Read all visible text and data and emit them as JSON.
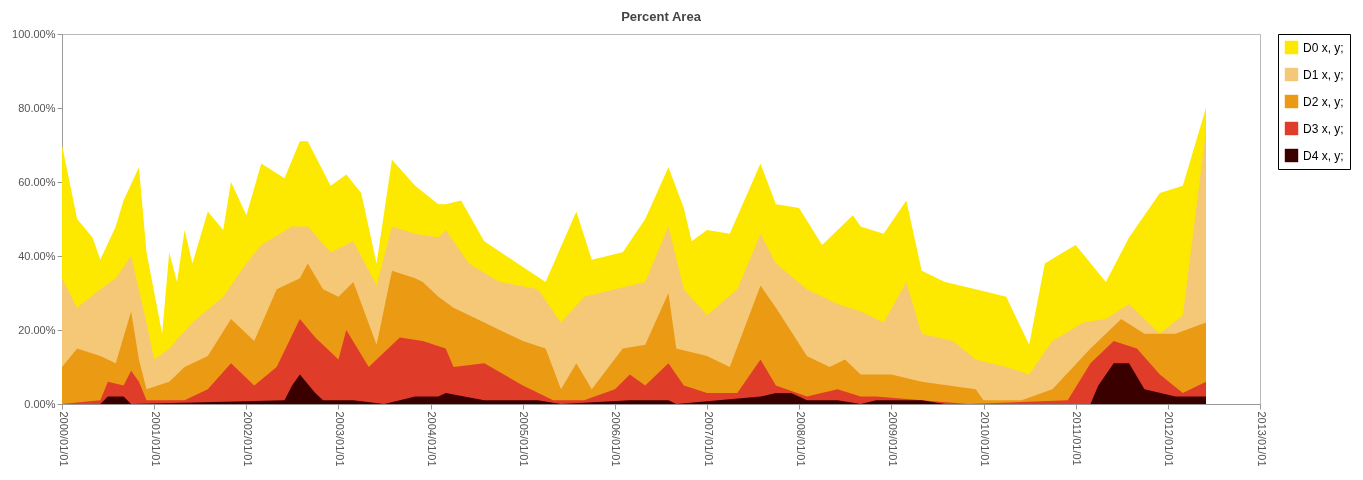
{
  "chart_data": {
    "type": "area",
    "title": "Percent Area",
    "xlim": [
      "2000-01-01",
      "2013-01-01"
    ],
    "xticks": [
      {
        "value": "2000-01-01",
        "label": "2000/01/01"
      },
      {
        "value": "2001-01-01",
        "label": "2001/01/01"
      },
      {
        "value": "2002-01-01",
        "label": "2002/01/01"
      },
      {
        "value": "2003-01-01",
        "label": "2003/01/01"
      },
      {
        "value": "2004-01-01",
        "label": "2004/01/01"
      },
      {
        "value": "2005-01-01",
        "label": "2005/01/01"
      },
      {
        "value": "2006-01-01",
        "label": "2006/01/01"
      },
      {
        "value": "2007-01-01",
        "label": "2007/01/01"
      },
      {
        "value": "2008-01-01",
        "label": "2008/01/01"
      },
      {
        "value": "2009-01-01",
        "label": "2009/01/01"
      },
      {
        "value": "2010-01-01",
        "label": "2010/01/01"
      },
      {
        "value": "2011-01-01",
        "label": "2011/01/01"
      },
      {
        "value": "2012-01-01",
        "label": "2012/01/01"
      },
      {
        "value": "2013-01-01",
        "label": "2013/01/01"
      }
    ],
    "ylim": [
      0,
      100
    ],
    "yticks": [
      {
        "value": 0,
        "label": "0.00%"
      },
      {
        "value": 20,
        "label": "20.00%"
      },
      {
        "value": 40,
        "label": "40.00%"
      },
      {
        "value": 60,
        "label": "60.00%"
      },
      {
        "value": 80,
        "label": "80.00%"
      },
      {
        "value": 100,
        "label": "100.00%"
      }
    ],
    "legend": "top right",
    "series": [
      {
        "name": "D0 x, y;",
        "color": "#fde800",
        "x": [
          "2000-01",
          "2000-03",
          "2000-05",
          "2000-06",
          "2000-08",
          "2000-09",
          "2000-11",
          "2000-12",
          "2001-01",
          "2001-02",
          "2001-03",
          "2001-04",
          "2001-05",
          "2001-06",
          "2001-08",
          "2001-10",
          "2001-11",
          "2002-01",
          "2002-03",
          "2002-06",
          "2002-08",
          "2002-09",
          "2002-12",
          "2003-02",
          "2003-04",
          "2003-06",
          "2003-08",
          "2003-11",
          "2004-02",
          "2004-03",
          "2004-05",
          "2004-08",
          "2005-01",
          "2005-04",
          "2005-08",
          "2005-10",
          "2006-02",
          "2006-05",
          "2006-08",
          "2006-10",
          "2006-11",
          "2007-01",
          "2007-04",
          "2007-08",
          "2007-10",
          "2008-01",
          "2008-04",
          "2008-08",
          "2008-09",
          "2008-12",
          "2009-03",
          "2009-05",
          "2009-08",
          "2009-12",
          "2010-04",
          "2010-07",
          "2010-09",
          "2011-01",
          "2011-05",
          "2011-08",
          "2011-12",
          "2012-03",
          "2012-06"
        ],
        "values": [
          70,
          50,
          45,
          39,
          48,
          55,
          64,
          41,
          30,
          19,
          41,
          33,
          47,
          38,
          52,
          47,
          60,
          51,
          65,
          61,
          71,
          71,
          59,
          62,
          57,
          38,
          66,
          59,
          54,
          54,
          55,
          44,
          37,
          33,
          52,
          39,
          41,
          50,
          64,
          53,
          44,
          47,
          46,
          65,
          54,
          53,
          43,
          51,
          48,
          46,
          55,
          36,
          33,
          31,
          29,
          16,
          38,
          43,
          33,
          45,
          57,
          59,
          80
        ]
      },
      {
        "name": "D1 x, y;",
        "color": "#f5c878",
        "x": [
          "2000-01",
          "2000-03",
          "2000-06",
          "2000-08",
          "2000-10",
          "2000-12",
          "2001-01",
          "2001-03",
          "2001-06",
          "2001-10",
          "2002-01",
          "2002-03",
          "2002-07",
          "2002-09",
          "2002-12",
          "2003-03",
          "2003-06",
          "2003-08",
          "2003-11",
          "2004-02",
          "2004-03",
          "2004-06",
          "2004-10",
          "2005-03",
          "2005-06",
          "2005-09",
          "2006-01",
          "2006-05",
          "2006-08",
          "2006-10",
          "2007-01",
          "2007-05",
          "2007-08",
          "2007-10",
          "2008-02",
          "2008-06",
          "2008-09",
          "2008-12",
          "2009-03",
          "2009-05",
          "2009-09",
          "2009-12",
          "2010-04",
          "2010-07",
          "2010-10",
          "2011-02",
          "2011-05",
          "2011-08",
          "2011-12",
          "2012-03",
          "2012-06"
        ],
        "values": [
          34,
          26,
          31,
          34,
          40,
          22,
          12,
          15,
          22,
          29,
          38,
          43,
          48,
          48,
          41,
          44,
          32,
          48,
          46,
          45,
          47,
          38,
          33,
          31,
          22,
          29,
          31,
          33,
          48,
          31,
          24,
          31,
          46,
          38,
          31,
          27,
          25,
          22,
          33,
          19,
          17,
          12,
          10,
          8,
          17,
          22,
          23,
          27,
          19,
          24,
          74
        ]
      },
      {
        "name": "D2 x, y;",
        "color": "#eb9a14",
        "x": [
          "2000-01",
          "2000-03",
          "2000-06",
          "2000-08",
          "2000-10",
          "2000-11",
          "2000-12",
          "2001-03",
          "2001-05",
          "2001-08",
          "2001-11",
          "2002-02",
          "2002-05",
          "2002-08",
          "2002-09",
          "2002-11",
          "2003-01",
          "2003-03",
          "2003-06",
          "2003-08",
          "2003-11",
          "2003-12",
          "2004-02",
          "2004-04",
          "2004-08",
          "2005-01",
          "2005-04",
          "2005-06",
          "2005-08",
          "2005-10",
          "2006-02",
          "2006-05",
          "2006-08",
          "2006-09",
          "2007-01",
          "2007-04",
          "2007-08",
          "2007-10",
          "2008-02",
          "2008-05",
          "2008-07",
          "2008-09",
          "2009-01",
          "2009-05",
          "2009-12",
          "2010-01",
          "2010-06",
          "2010-10",
          "2011-03",
          "2011-07",
          "2011-10",
          "2012-02",
          "2012-06"
        ],
        "values": [
          10,
          15,
          13,
          11,
          25,
          12,
          4,
          6,
          10,
          13,
          23,
          17,
          31,
          34,
          38,
          31,
          29,
          33,
          16,
          36,
          34,
          33,
          29,
          26,
          22,
          17,
          15,
          4,
          11,
          4,
          15,
          16,
          30,
          15,
          13,
          10,
          32,
          26,
          13,
          10,
          12,
          8,
          8,
          6,
          4,
          1,
          1,
          4,
          15,
          23,
          19,
          19,
          22
        ]
      },
      {
        "name": "D3 x, y;",
        "color": "#e03c2a",
        "x": [
          "2000-01",
          "2000-06",
          "2000-07",
          "2000-09",
          "2000-10",
          "2000-11",
          "2000-12",
          "2001-05",
          "2001-08",
          "2001-11",
          "2002-02",
          "2002-05",
          "2002-08",
          "2002-10",
          "2003-01",
          "2003-02",
          "2003-05",
          "2003-09",
          "2003-12",
          "2004-03",
          "2004-04",
          "2004-08",
          "2005-01",
          "2005-05",
          "2005-09",
          "2006-01",
          "2006-03",
          "2006-05",
          "2006-08",
          "2006-10",
          "2007-01",
          "2007-05",
          "2007-08",
          "2007-10",
          "2008-02",
          "2008-06",
          "2008-09",
          "2008-11",
          "2009-05",
          "2009-11",
          "2010-12",
          "2011-03",
          "2011-06",
          "2011-09",
          "2011-12",
          "2012-03",
          "2012-06"
        ],
        "values": [
          0,
          1,
          6,
          5,
          9,
          6,
          1,
          1,
          4,
          11,
          5,
          10,
          23,
          18,
          12,
          20,
          10,
          18,
          17,
          15,
          10,
          11,
          5,
          1,
          1,
          4,
          8,
          5,
          11,
          5,
          3,
          3,
          12,
          5,
          2,
          4,
          2,
          2,
          1,
          0,
          1,
          11,
          17,
          15,
          8,
          3,
          6
        ]
      },
      {
        "name": "D4 x, y;",
        "color": "#3a0000",
        "x": [
          "2000-01",
          "2000-06",
          "2000-07",
          "2000-09",
          "2000-10",
          "2002-06",
          "2002-07",
          "2002-08",
          "2002-10",
          "2002-11",
          "2003-03",
          "2003-07",
          "2003-09",
          "2003-11",
          "2004-02",
          "2004-03",
          "2004-08",
          "2005-03",
          "2005-06",
          "2006-03",
          "2006-08",
          "2006-09",
          "2007-08",
          "2007-10",
          "2007-12",
          "2008-02",
          "2008-06",
          "2008-09",
          "2008-11",
          "2009-05",
          "2009-08",
          "2011-03",
          "2011-04",
          "2011-06",
          "2011-08",
          "2011-10",
          "2012-02",
          "2012-06"
        ],
        "values": [
          0,
          0,
          2,
          2,
          0,
          1,
          5,
          8,
          3,
          1,
          1,
          0,
          1,
          2,
          2,
          3,
          1,
          1,
          0,
          1,
          1,
          0,
          2,
          3,
          3,
          1,
          1,
          0,
          1,
          1,
          0,
          0,
          5,
          11,
          11,
          4,
          2,
          2
        ]
      }
    ]
  }
}
